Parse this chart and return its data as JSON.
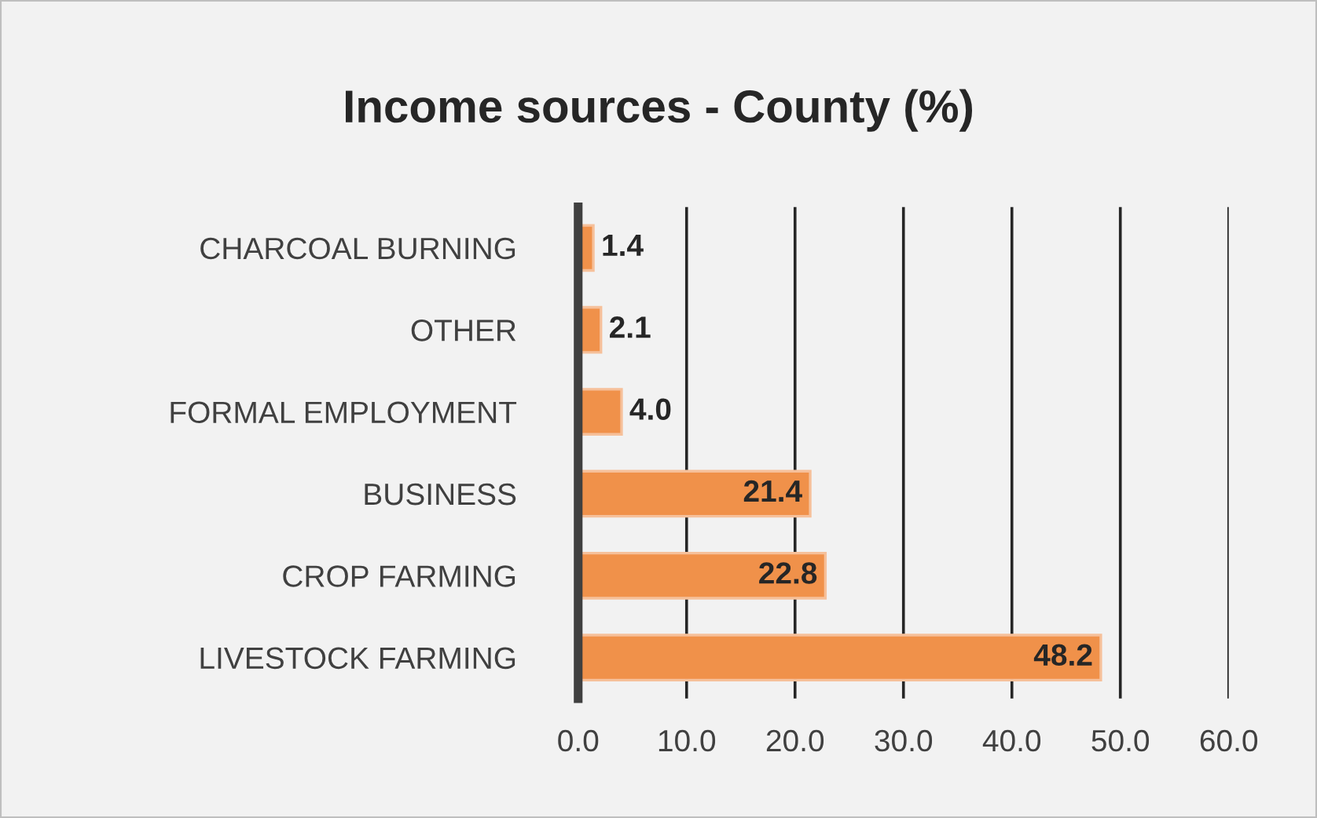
{
  "chart_data": {
    "type": "bar",
    "orientation": "horizontal",
    "title": "Income sources - County (%)",
    "categories": [
      "CHARCOAL BURNING",
      "OTHER",
      "FORMAL EMPLOYMENT",
      "BUSINESS",
      "CROP FARMING",
      "LIVESTOCK FARMING"
    ],
    "values": [
      1.4,
      2.1,
      4.0,
      21.4,
      22.8,
      48.2
    ],
    "value_labels": [
      "1.4",
      "2.1",
      "4.0",
      "21.4",
      "22.8",
      "48.2"
    ],
    "color": "#f0914a",
    "xlim": [
      0,
      60
    ],
    "xticks": [
      {
        "value": 0,
        "label": "0.0"
      },
      {
        "value": 10,
        "label": "10.0"
      },
      {
        "value": 20,
        "label": "20.0"
      },
      {
        "value": 30,
        "label": "30.0"
      },
      {
        "value": 40,
        "label": "40.0"
      },
      {
        "value": 50,
        "label": "50.0"
      },
      {
        "value": 60,
        "label": "60.0"
      }
    ],
    "grid": "x"
  }
}
